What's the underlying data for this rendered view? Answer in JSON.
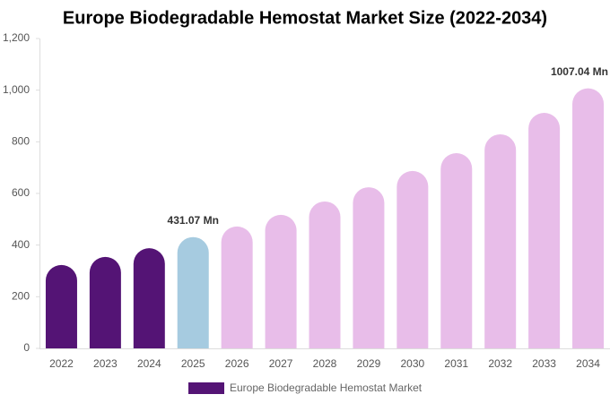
{
  "chart_data": {
    "type": "bar",
    "title": "Europe Biodegradable Hemostat Market Size (2022-2034)",
    "categories": [
      "2022",
      "2023",
      "2024",
      "2025",
      "2026",
      "2027",
      "2028",
      "2029",
      "2030",
      "2031",
      "2032",
      "2033",
      "2034"
    ],
    "series": [
      {
        "name": "Europe Biodegradable Hemostat Market",
        "color": "#541475",
        "values": [
          323,
          354,
          388,
          431.07,
          472,
          517,
          569,
          624,
          687,
          756,
          829,
          912,
          1007.04
        ],
        "value_labels": [
          null,
          null,
          null,
          "431.07 Mn",
          null,
          null,
          null,
          null,
          null,
          null,
          null,
          null,
          "1007.04 Mn"
        ]
      }
    ],
    "bar_colors": [
      "#541475",
      "#541475",
      "#541475",
      "#a6cbe0",
      "#e8bde9",
      "#e8bde9",
      "#e8bde9",
      "#e8bde9",
      "#e8bde9",
      "#e8bde9",
      "#e8bde9",
      "#e8bde9",
      "#e8bde9"
    ],
    "ylim": [
      0,
      1200
    ],
    "yticks": [
      0,
      200,
      400,
      600,
      800,
      {
        "value": 1000,
        "label": "1,000"
      },
      {
        "value": 1200,
        "label": "1,200"
      }
    ],
    "grid": false
  }
}
